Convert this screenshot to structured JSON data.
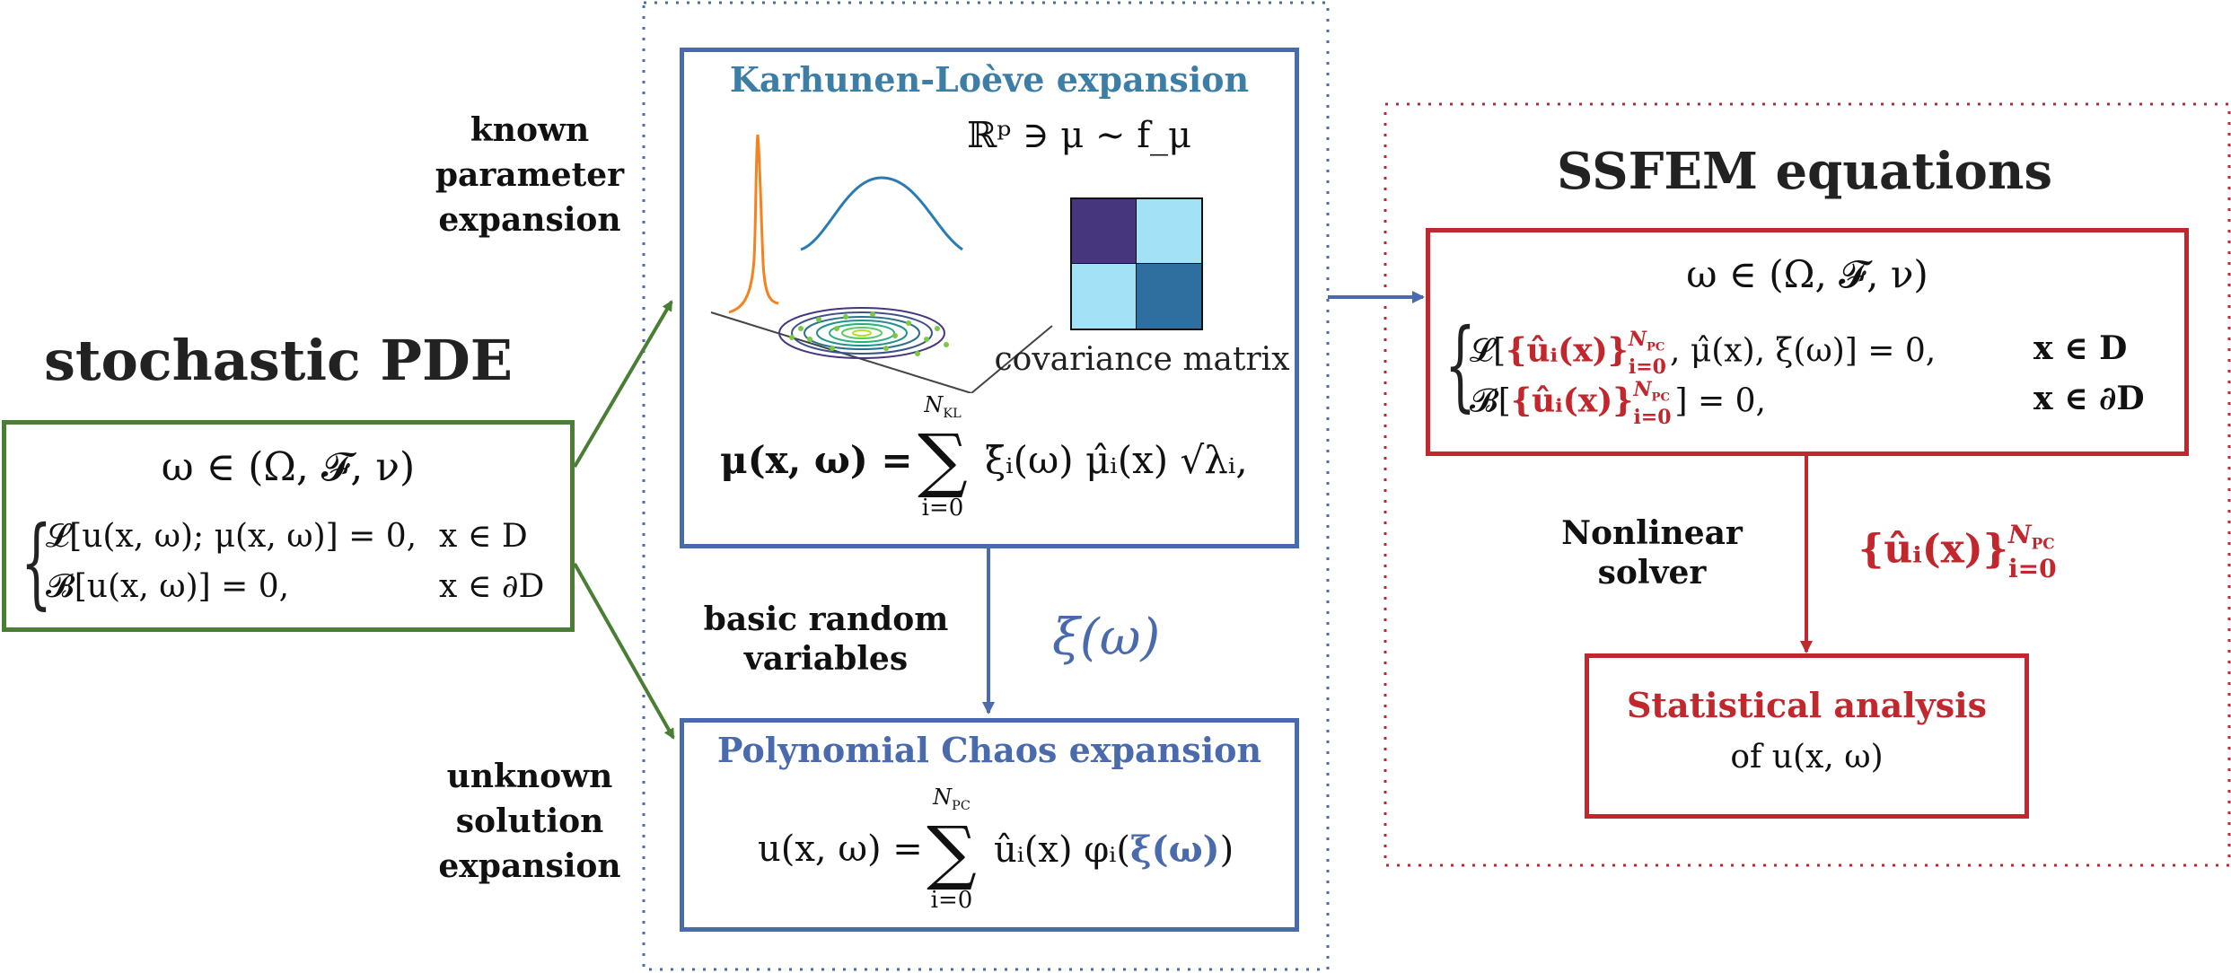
{
  "colors": {
    "green": "#4a7e34",
    "blue": "#4a6aae",
    "kl_title": "#3d7ea6",
    "red": "#c1272d",
    "cov_dark": "#46367e",
    "cov_light": "#a3e2f6",
    "cov_mid": "#2f6f9f",
    "orange": "#f58220",
    "curve_blue": "#2a7bb4"
  },
  "left": {
    "title": "stochastic PDE",
    "prob_space": "ω ∈ (Ω, 𝓕, ν)",
    "eq1": "𝓛[u(x, ω); μ(x, ω)] = 0,",
    "eq1_domain": "x ∈ D",
    "eq2": "𝓑[u(x, ω)] = 0,",
    "eq2_domain": "x ∈ ∂D"
  },
  "labels": {
    "known": [
      "known",
      "parameter",
      "expansion"
    ],
    "unknown": [
      "unknown",
      "solution",
      "expansion"
    ],
    "basic": [
      "basic random",
      "variables"
    ],
    "nonlinear": [
      "Nonlinear",
      "solver"
    ]
  },
  "kl": {
    "title": "Karhunen-Loève expansion",
    "formula": "ℝᵖ ∋ μ ∼ f_μ",
    "cov_label": "covariance matrix",
    "expansion_lhs": "μ(x, ω) =",
    "sum_top": "N",
    "sum_top_sub": "KL",
    "sum_bottom": "i=0",
    "expansion_rhs": "ξ̄ᵢ(ω) μ̂ᵢ(x) √λᵢ,"
  },
  "xi": "ξ(ω)",
  "pc": {
    "title": "Polynomial Chaos expansion",
    "lhs": "u(x, ω) =",
    "sum_top": "N",
    "sum_top_sub": "PC",
    "sum_bottom": "i=0",
    "rhs": "ûᵢ(x) φᵢ(",
    "rhs_xi": "ξ(ω)",
    "rhs_close": ")"
  },
  "ssfem": {
    "title": "SSFEM equations",
    "prob_space": "ω ∈ (Ω, 𝓕, ν)",
    "eq1_pre": "𝓛[",
    "eq1_set": "{ûᵢ(x)}",
    "eq1_post": ", μ̂(x), ξ(ω)] = 0,",
    "eq1_domain": "x ∈ D",
    "eq2_pre": "𝓑[",
    "eq2_set": "{ûᵢ(x)}",
    "eq2_post": "] = 0,",
    "eq2_domain": "x ∈ ∂D",
    "sup": "N",
    "sup_sub": "PC",
    "sub": "i=0"
  },
  "solution_set": "{ûᵢ(x)}",
  "solution_sup": "N",
  "solution_sup_sub": "PC",
  "solution_sub": "i=0",
  "stat": {
    "title": "Statistical analysis",
    "subtitle": "of u(x, ω)"
  }
}
